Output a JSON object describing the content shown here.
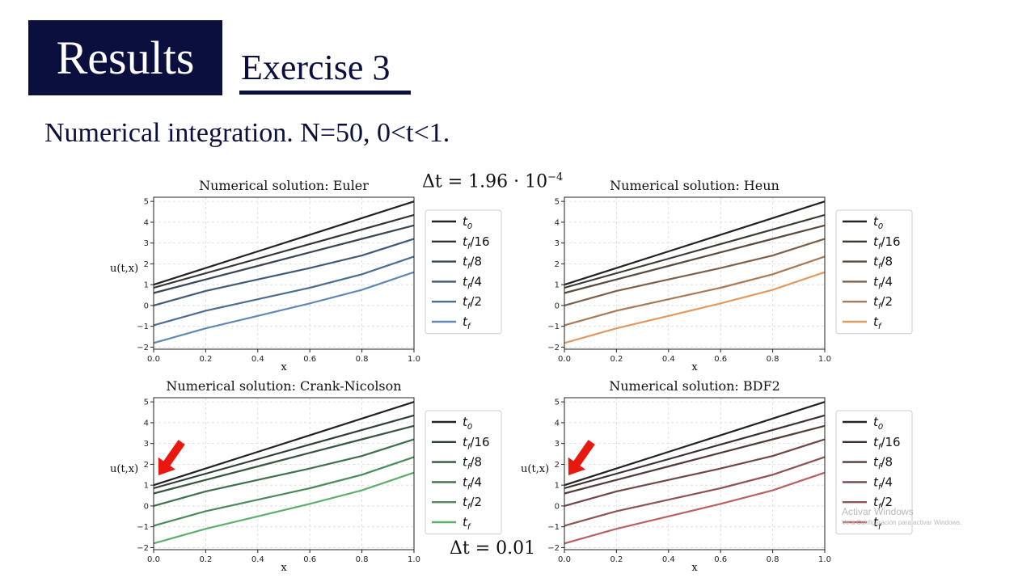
{
  "slide": {
    "badge": "Results",
    "subtitle": "Exercise 3",
    "description": "Numerical integration. N=50, 0<t<1.",
    "dt_top": {
      "prefix": "Δt = 1.96 · 10",
      "exponent": "−4"
    },
    "dt_bottom": {
      "text": "Δt = 0.01"
    }
  },
  "watermark": {
    "line1": "Activar Windows",
    "line2": "Ve a Configuración para activar Windows."
  },
  "legend_entries": [
    "t0",
    "tf/16",
    "tf/8",
    "tf/4",
    "tf/2",
    "tf"
  ],
  "chart_data": [
    {
      "type": "line",
      "title": "Numerical solution: Euler",
      "xlabel": "x",
      "ylabel": "u(t,x)",
      "xlim": [
        0,
        1
      ],
      "ylim": [
        -2.1,
        5.2
      ],
      "xticks": [
        "0.0",
        "0.2",
        "0.4",
        "0.6",
        "0.8",
        "1.0"
      ],
      "yticks": [
        "5",
        "4",
        "3",
        "2",
        "1",
        "0",
        "−1",
        "−2"
      ],
      "grid": true,
      "legend": "outside-right",
      "x": [
        0,
        0.2,
        0.4,
        0.6,
        0.8,
        1.0
      ],
      "series": [
        {
          "name": "t0",
          "color": "#222222",
          "values": [
            1.0,
            1.8,
            2.6,
            3.4,
            4.2,
            5.0
          ]
        },
        {
          "name": "tf/16",
          "color": "#333333",
          "values": [
            0.85,
            1.55,
            2.25,
            2.95,
            3.65,
            4.35
          ]
        },
        {
          "name": "tf/8",
          "color": "#3a4658",
          "values": [
            0.6,
            1.25,
            1.9,
            2.55,
            3.2,
            3.85
          ]
        },
        {
          "name": "tf/4",
          "color": "#3f5a78",
          "values": [
            0.0,
            0.7,
            1.25,
            1.8,
            2.4,
            3.2
          ]
        },
        {
          "name": "tf/2",
          "color": "#4d6e93",
          "values": [
            -0.95,
            -0.25,
            0.3,
            0.85,
            1.5,
            2.35
          ]
        },
        {
          "name": "tf",
          "color": "#6189b3",
          "values": [
            -1.8,
            -1.1,
            -0.5,
            0.1,
            0.75,
            1.6
          ]
        }
      ]
    },
    {
      "type": "line",
      "title": "Numerical solution: Heun",
      "xlabel": "x",
      "ylabel": "",
      "xlim": [
        0,
        1
      ],
      "ylim": [
        -2.1,
        5.2
      ],
      "xticks": [
        "0.0",
        "0.2",
        "0.4",
        "0.6",
        "0.8",
        "1.0"
      ],
      "yticks": [
        "5",
        "4",
        "3",
        "2",
        "1",
        "0",
        "−1",
        "−2"
      ],
      "grid": true,
      "legend": "outside-right",
      "x": [
        0,
        0.2,
        0.4,
        0.6,
        0.8,
        1.0
      ],
      "series": [
        {
          "name": "t0",
          "color": "#222222",
          "values": [
            1.0,
            1.8,
            2.6,
            3.4,
            4.2,
            5.0
          ]
        },
        {
          "name": "tf/16",
          "color": "#3d3a33",
          "values": [
            0.85,
            1.55,
            2.25,
            2.95,
            3.65,
            4.35
          ]
        },
        {
          "name": "tf/8",
          "color": "#5a4a3c",
          "values": [
            0.6,
            1.25,
            1.9,
            2.55,
            3.2,
            3.85
          ]
        },
        {
          "name": "tf/4",
          "color": "#7d5f47",
          "values": [
            0.0,
            0.7,
            1.25,
            1.8,
            2.4,
            3.2
          ]
        },
        {
          "name": "tf/2",
          "color": "#a87a56",
          "values": [
            -0.95,
            -0.25,
            0.3,
            0.85,
            1.5,
            2.35
          ]
        },
        {
          "name": "tf",
          "color": "#e2995f",
          "values": [
            -1.8,
            -1.1,
            -0.5,
            0.1,
            0.75,
            1.6
          ]
        }
      ]
    },
    {
      "type": "line",
      "title": "Numerical solution: Crank-Nicolson",
      "xlabel": "x",
      "ylabel": "u(t,x)",
      "xlim": [
        0,
        1
      ],
      "ylim": [
        -2.1,
        5.2
      ],
      "xticks": [
        "0.0",
        "0.2",
        "0.4",
        "0.6",
        "0.8",
        "1.0"
      ],
      "yticks": [
        "5",
        "4",
        "3",
        "2",
        "1",
        "0",
        "−1",
        "−2"
      ],
      "grid": true,
      "legend": "outside-right",
      "x": [
        0,
        0.2,
        0.4,
        0.6,
        0.8,
        1.0
      ],
      "series": [
        {
          "name": "t0",
          "color": "#222222",
          "values": [
            1.0,
            1.8,
            2.6,
            3.4,
            4.2,
            5.0
          ]
        },
        {
          "name": "tf/16",
          "color": "#2f3d33",
          "values": [
            0.85,
            1.55,
            2.25,
            2.95,
            3.65,
            4.35
          ]
        },
        {
          "name": "tf/8",
          "color": "#35573e",
          "values": [
            0.6,
            1.25,
            1.9,
            2.55,
            3.2,
            3.85
          ]
        },
        {
          "name": "tf/4",
          "color": "#3e7049",
          "values": [
            0.0,
            0.7,
            1.25,
            1.8,
            2.4,
            3.2
          ]
        },
        {
          "name": "tf/2",
          "color": "#4a8b57",
          "values": [
            -0.95,
            -0.25,
            0.3,
            0.85,
            1.5,
            2.35
          ]
        },
        {
          "name": "tf",
          "color": "#5fae6b",
          "values": [
            -1.8,
            -1.1,
            -0.5,
            0.1,
            0.75,
            1.6
          ]
        }
      ]
    },
    {
      "type": "line",
      "title": "Numerical solution: BDF2",
      "xlabel": "x",
      "ylabel": "u(t,x)",
      "xlim": [
        0,
        1
      ],
      "ylim": [
        -2.1,
        5.2
      ],
      "xticks": [
        "0.0",
        "0.2",
        "0.4",
        "0.6",
        "0.8",
        "1.0"
      ],
      "yticks": [
        "5",
        "4",
        "3",
        "2",
        "1",
        "0",
        "−1",
        "−2"
      ],
      "grid": true,
      "legend": "outside-right",
      "x": [
        0,
        0.2,
        0.4,
        0.6,
        0.8,
        1.0
      ],
      "series": [
        {
          "name": "t0",
          "color": "#222222",
          "values": [
            1.0,
            1.8,
            2.6,
            3.4,
            4.2,
            5.0
          ]
        },
        {
          "name": "tf/16",
          "color": "#3a2f2f",
          "values": [
            0.85,
            1.55,
            2.25,
            2.95,
            3.65,
            4.35
          ]
        },
        {
          "name": "tf/8",
          "color": "#553a3a",
          "values": [
            0.6,
            1.25,
            1.9,
            2.55,
            3.2,
            3.85
          ]
        },
        {
          "name": "tf/4",
          "color": "#714646",
          "values": [
            0.0,
            0.7,
            1.25,
            1.8,
            2.4,
            3.2
          ]
        },
        {
          "name": "tf/2",
          "color": "#8f5252",
          "values": [
            -0.95,
            -0.25,
            0.3,
            0.85,
            1.5,
            2.35
          ]
        },
        {
          "name": "tf",
          "color": "#b86161",
          "values": [
            -1.8,
            -1.1,
            -0.5,
            0.1,
            0.75,
            1.6
          ]
        }
      ]
    }
  ]
}
